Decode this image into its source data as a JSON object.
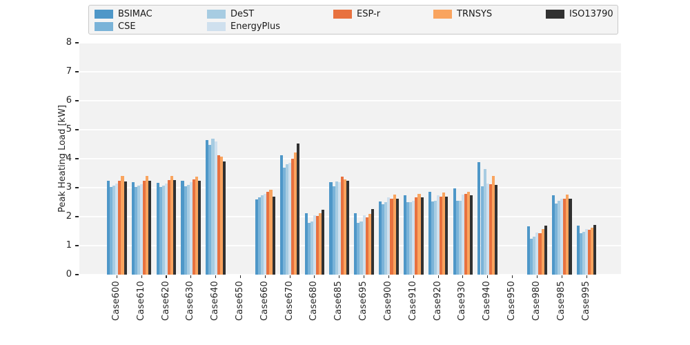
{
  "figure": {
    "background": "#ffffff",
    "plot_background": "#f2f2f2",
    "grid_color": "#ffffff",
    "tick_color": "#262626"
  },
  "legend": {
    "position": "top",
    "entries": [
      {
        "label": "BSIMAC",
        "color": "#4e97c8"
      },
      {
        "label": "CSE",
        "color": "#7ab3d8"
      },
      {
        "label": "DeST",
        "color": "#a7cce2"
      },
      {
        "label": "EnergyPlus",
        "color": "#cfe0ee"
      },
      {
        "label": "ESP-r",
        "color": "#e8713f"
      },
      {
        "label": "TRNSYS",
        "color": "#f9a45f"
      },
      {
        "label": "ISO13790",
        "color": "#313131"
      }
    ]
  },
  "chart_data": {
    "type": "bar",
    "title": "",
    "xlabel": "",
    "ylabel": "Peak Heating Load [kW]",
    "ylim": [
      0,
      8
    ],
    "yticks": [
      0,
      1,
      2,
      3,
      4,
      5,
      6,
      7,
      8
    ],
    "grid": true,
    "legend_position": "top",
    "categories": [
      "Case600",
      "Case610",
      "Case620",
      "Case630",
      "Case640",
      "Case650",
      "Case660",
      "Case670",
      "Case680",
      "Case685",
      "Case695",
      "Case900",
      "Case910",
      "Case920",
      "Case930",
      "Case940",
      "Case950",
      "Case980",
      "Case985",
      "Case995"
    ],
    "series": [
      {
        "name": "BSIMAC",
        "color": "#4e97c8",
        "values": [
          3.25,
          3.19,
          3.16,
          3.25,
          4.65,
          null,
          2.6,
          4.12,
          2.12,
          3.18,
          2.13,
          2.53,
          2.75,
          2.87,
          2.97,
          3.88,
          null,
          1.67,
          2.75,
          1.7
        ]
      },
      {
        "name": "CSE",
        "color": "#7ab3d8",
        "values": [
          3.02,
          3.02,
          3.02,
          3.05,
          4.48,
          null,
          2.67,
          3.68,
          1.79,
          3.05,
          1.79,
          2.43,
          2.49,
          2.53,
          2.56,
          3.06,
          null,
          1.24,
          2.45,
          1.42
        ]
      },
      {
        "name": "DeST",
        "color": "#a7cce2",
        "values": [
          3.07,
          3.07,
          3.08,
          3.1,
          4.68,
          null,
          2.73,
          3.8,
          1.83,
          3.22,
          1.83,
          2.49,
          2.49,
          2.56,
          2.56,
          3.65,
          null,
          1.32,
          2.56,
          1.48
        ]
      },
      {
        "name": "EnergyPlus",
        "color": "#cfe0ee",
        "values": [
          3.15,
          3.13,
          3.14,
          3.18,
          4.6,
          null,
          2.79,
          3.86,
          2.06,
          3.19,
          2.06,
          2.67,
          2.56,
          2.75,
          2.77,
          3.14,
          null,
          1.46,
          2.61,
          1.58
        ]
      },
      {
        "name": "ESP-r",
        "color": "#e8713f",
        "values": [
          3.25,
          3.25,
          3.27,
          3.28,
          4.12,
          null,
          2.87,
          4.0,
          2.02,
          3.38,
          1.98,
          2.63,
          2.67,
          2.7,
          2.78,
          3.13,
          null,
          1.44,
          2.63,
          1.56
        ]
      },
      {
        "name": "TRNSYS",
        "color": "#f9a45f",
        "values": [
          3.4,
          3.4,
          3.41,
          3.39,
          4.08,
          null,
          2.94,
          4.21,
          2.13,
          3.29,
          2.1,
          2.77,
          2.79,
          2.83,
          2.87,
          3.4,
          null,
          1.58,
          2.77,
          1.62
        ]
      },
      {
        "name": "ISO13790",
        "color": "#313131",
        "values": [
          3.21,
          3.24,
          3.27,
          3.25,
          3.9,
          null,
          2.69,
          4.53,
          2.24,
          3.25,
          2.27,
          2.62,
          2.67,
          2.7,
          2.75,
          3.1,
          null,
          1.7,
          2.63,
          1.71
        ]
      }
    ]
  }
}
